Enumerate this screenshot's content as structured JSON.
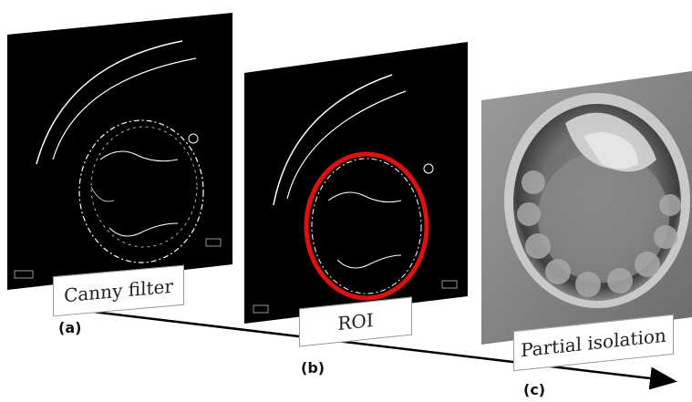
{
  "panels": [
    {
      "id": "a",
      "letter": "(a)",
      "caption": "Canny filter"
    },
    {
      "id": "b",
      "letter": "(b)",
      "caption": "ROI"
    },
    {
      "id": "c",
      "letter": "(c)",
      "caption": "Partial isolation"
    }
  ],
  "colors": {
    "panel_bg": "#000000",
    "edge": "#ffffff",
    "roi": "#e01010",
    "arrow": "#000000"
  }
}
